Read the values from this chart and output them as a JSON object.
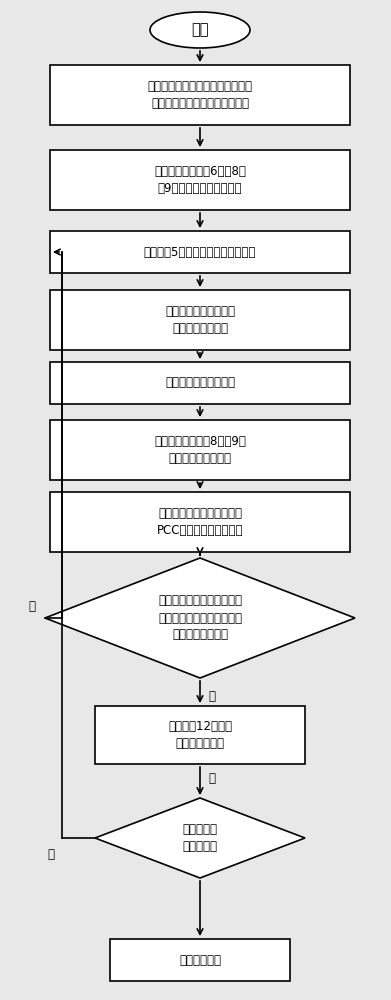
{
  "bg_color": "#e8e8e8",
  "box_fill": "#ffffff",
  "box_edge": "#000000",
  "text_color": "#000000",
  "font_size": 8.5,
  "start_text": "开始",
  "box1_text": "根据各时段的负荷随机分布各机组\n的出力，并以此生成初始粒子群",
  "box2_text": "根据约束条件式（6）（8）\n（9）对机组出力进行调整",
  "box3_text": "根据式（5）计算每个粒子的适应值",
  "box4_text": "确定每个粒子的局部最\n优值和全局最优值",
  "box5_text": "更新粒子的位置和速度",
  "box6_text": "根据约束条件式（8）（9）\n对机组出力进行调整",
  "box7_text": "根据调整后的机组出力计算\nPCC点向微网的输送功率",
  "diam1_text": "从第二次迭代开始，比较前\n后两次全局最优值，两值之\n差是否小于某一值",
  "box8_text": "根据式（12）对粒\n子速度进行调整",
  "diam2_text": "判断是否达\n到迭代次数",
  "end_text": "输出最终结果",
  "yes_text": "是",
  "no_text": "否"
}
